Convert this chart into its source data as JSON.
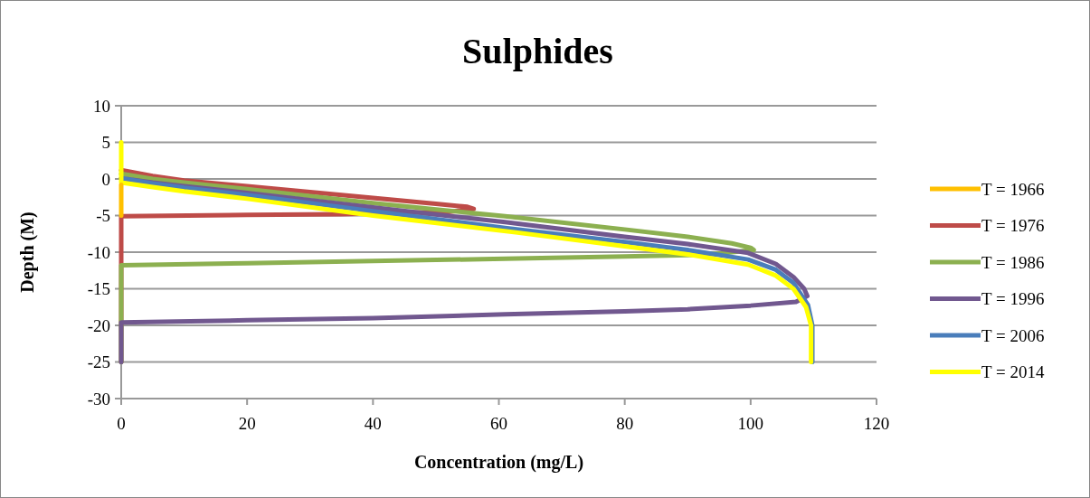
{
  "chart_data": {
    "type": "line",
    "title": "Sulphides",
    "xlabel": "Concentration (mg/L)",
    "ylabel": "Depth (M)",
    "xlim": [
      0,
      120
    ],
    "xticks": [
      0,
      20,
      40,
      60,
      80,
      100,
      120
    ],
    "ylim": [
      -30,
      10
    ],
    "yticks": [
      -30,
      -25,
      -20,
      -15,
      -10,
      -5,
      0,
      5,
      10
    ],
    "grid": "y",
    "legend": "right",
    "marker": "none",
    "line_style": "solid",
    "series": [
      {
        "name": "T = 1966",
        "color": "#ffc000",
        "x": [
          0,
          0
        ],
        "values": [
          -0.8,
          -5
        ]
      },
      {
        "name": "T = 1976",
        "color": "#be4b48",
        "x": [
          0,
          5,
          10,
          20,
          30,
          40,
          50,
          55,
          56,
          52,
          45,
          35,
          20,
          0,
          0
        ],
        "values": [
          1.2,
          0.4,
          -0.2,
          -1,
          -1.8,
          -2.6,
          -3.4,
          -3.8,
          -4.1,
          -4.5,
          -4.6,
          -4.8,
          -4.9,
          -5.1,
          -25
        ]
      },
      {
        "name": "T = 1986",
        "color": "#8cb050",
        "x": [
          0,
          5,
          10,
          20,
          40,
          61,
          80,
          90,
          97,
          100,
          100.5,
          95,
          90,
          80,
          61,
          40,
          20,
          0,
          0
        ],
        "values": [
          0.7,
          0,
          -0.5,
          -1.4,
          -3.3,
          -5.1,
          -6.9,
          -7.9,
          -8.8,
          -9.4,
          -9.7,
          -10.2,
          -10.4,
          -10.6,
          -10.9,
          -11.2,
          -11.5,
          -11.8,
          -25
        ]
      },
      {
        "name": "T = 1996",
        "color": "#71588f",
        "x": [
          0,
          5,
          10,
          20,
          40,
          61,
          80,
          90,
          99.6,
          104,
          106.8,
          108.5,
          109,
          107.2,
          100,
          90,
          80,
          61,
          40,
          20,
          0,
          0
        ],
        "values": [
          0.1,
          -0.5,
          -1,
          -1.9,
          -3.9,
          -5.9,
          -7.9,
          -8.9,
          -10.1,
          -11.6,
          -13.4,
          -15,
          -16,
          -16.8,
          -17.3,
          -17.8,
          -18.1,
          -18.5,
          -19,
          -19.3,
          -19.6,
          -25
        ]
      },
      {
        "name": "T = 2006",
        "color": "#4a7ebb",
        "x": [
          0,
          5,
          10,
          20,
          40,
          61,
          80,
          90,
          99.6,
          104,
          106.8,
          109.1,
          109.8,
          109.8
        ],
        "values": [
          0.1,
          -0.6,
          -1.2,
          -2.2,
          -4.4,
          -6.7,
          -8.6,
          -9.7,
          -11,
          -12.4,
          -14.2,
          -17.2,
          -20,
          -25
        ]
      },
      {
        "name": "T = 2014",
        "color": "#ffff00",
        "x": [
          0,
          0,
          5,
          10,
          20,
          40,
          62.7,
          80,
          90,
          99.6,
          104,
          106.8,
          108.8,
          109.6,
          109.6
        ],
        "values": [
          5,
          -0.5,
          -1.1,
          -1.7,
          -2.7,
          -5,
          -7.3,
          -9.2,
          -10.3,
          -11.7,
          -13.2,
          -15,
          -17.5,
          -20,
          -25
        ]
      }
    ]
  }
}
